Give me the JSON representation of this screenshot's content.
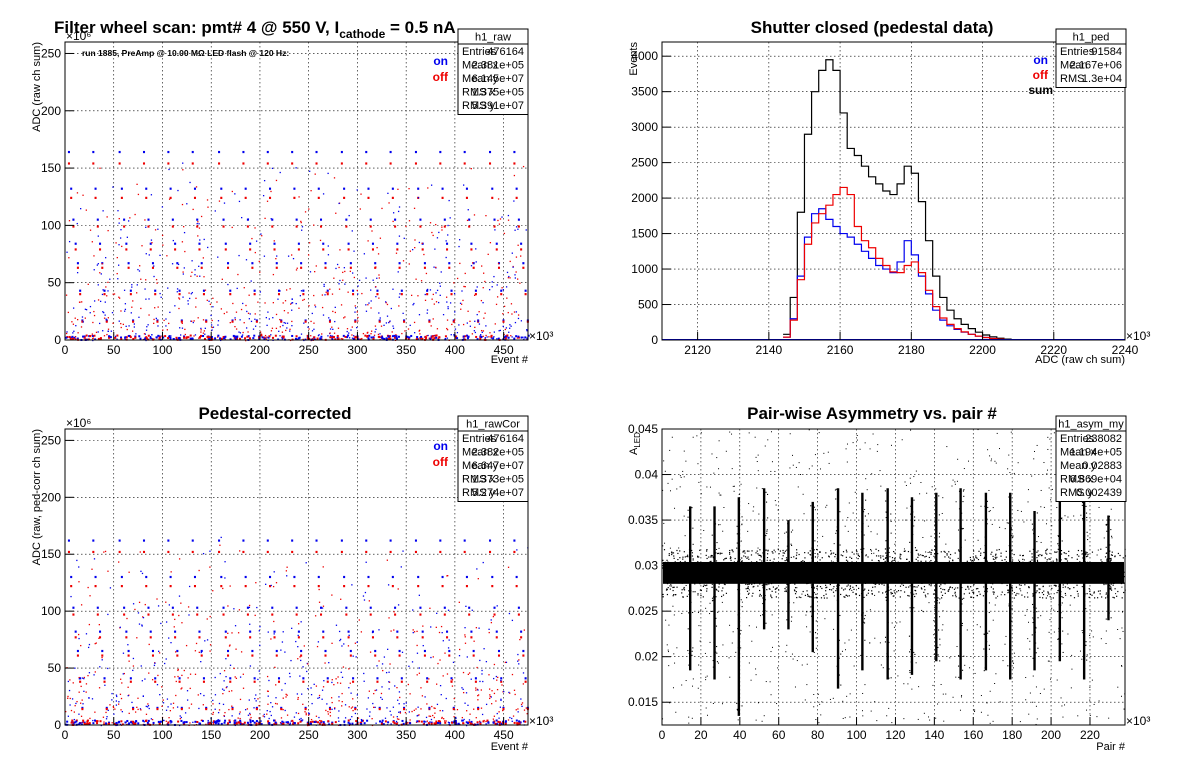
{
  "chart_data": [
    {
      "type": "scatter",
      "title_parts": [
        "Filter wheel scan: pmt#   4 @   550 V, I",
        "cathode",
        " = 0.5 nA"
      ],
      "annotation": "run 1885, PreAmp @ 10.00 MΩ LED flash @  120 Hz:",
      "xlabel": "Event #",
      "ylabel": "ADC (raw ch sum)",
      "xlim": [
        0,
        475000
      ],
      "ylim": [
        0,
        260000000
      ],
      "x_ticks": [
        0,
        50,
        100,
        150,
        200,
        250,
        300,
        350,
        400,
        450
      ],
      "y_ticks": [
        0,
        50,
        100,
        150,
        200,
        250
      ],
      "x_exp": "×10³",
      "y_exp": "×10⁶",
      "legend": [
        {
          "label": "on",
          "color": "#0000ee"
        },
        {
          "label": "off",
          "color": "#ee0000"
        }
      ],
      "stats": {
        "name": "h1_raw",
        "rows": [
          [
            "Entries",
            "476164"
          ],
          [
            "Mean x",
            "2.381e+05"
          ],
          [
            "Mean y",
            "6.145e+07"
          ],
          [
            "RMS x",
            "1.375e+05"
          ],
          [
            "RMS y",
            "5.391e+07"
          ]
        ]
      },
      "cycle_events": [
        0,
        25000,
        52000,
        77000,
        102000,
        127000,
        154000,
        179000,
        204000,
        229000,
        254000,
        280000,
        305000,
        330000,
        356000,
        381000,
        406000,
        432000,
        457000
      ],
      "level_stack_on": [
        164,
        132,
        105,
        84,
        67,
        43,
        17,
        3
      ],
      "level_stack_off": [
        154,
        124,
        99,
        79,
        63,
        40,
        16,
        2
      ],
      "grid": true
    },
    {
      "type": "step",
      "title": "Shutter closed (pedestal data)",
      "xlabel": "ADC (raw ch sum)",
      "ylabel": "Events",
      "xlim": [
        2110,
        2240
      ],
      "ylim": [
        0,
        4200
      ],
      "x_ticks": [
        2120,
        2140,
        2160,
        2180,
        2200,
        2220,
        2240
      ],
      "y_ticks": [
        0,
        500,
        1000,
        1500,
        2000,
        2500,
        3000,
        3500,
        4000
      ],
      "x_exp": "×10³",
      "legend": [
        {
          "label": "on",
          "color": "#0000ee"
        },
        {
          "label": "off",
          "color": "#ee0000"
        },
        {
          "label": "sum",
          "color": "#000000"
        }
      ],
      "stats": {
        "name": "h1_ped",
        "rows": [
          [
            "Entries",
            "91584"
          ],
          [
            "Mean",
            "2.167e+06"
          ],
          [
            "RMS",
            "1.3e+04"
          ]
        ]
      },
      "x": [
        2145,
        2147,
        2149,
        2151,
        2153,
        2155,
        2157,
        2159,
        2161,
        2163,
        2165,
        2167,
        2169,
        2171,
        2173,
        2175,
        2177,
        2179,
        2181,
        2183,
        2185,
        2187,
        2189,
        2191,
        2193,
        2195,
        2197,
        2199,
        2201,
        2203,
        2205,
        2207,
        2209
      ],
      "series": [
        {
          "name": "sum",
          "color": "#000000",
          "values": [
            80,
            600,
            1800,
            2900,
            3500,
            3800,
            3950,
            3800,
            3200,
            2700,
            2600,
            2450,
            2300,
            2200,
            2100,
            2050,
            2200,
            2450,
            2350,
            1950,
            1400,
            900,
            600,
            420,
            300,
            220,
            160,
            110,
            70,
            45,
            25,
            12,
            5
          ]
        },
        {
          "name": "on",
          "color": "#0000ee",
          "values": [
            40,
            300,
            900,
            1450,
            1780,
            1850,
            1700,
            1600,
            1500,
            1450,
            1350,
            1250,
            1150,
            1050,
            1000,
            950,
            1100,
            1400,
            1200,
            900,
            650,
            420,
            280,
            200,
            150,
            110,
            80,
            55,
            35,
            22,
            12,
            6,
            2
          ]
        },
        {
          "name": "off",
          "color": "#ee0000",
          "values": [
            40,
            280,
            850,
            1350,
            1650,
            1780,
            1900,
            2050,
            2150,
            2050,
            1600,
            1400,
            1300,
            1150,
            1050,
            960,
            950,
            1050,
            1100,
            950,
            700,
            470,
            310,
            220,
            160,
            115,
            80,
            55,
            35,
            22,
            12,
            6,
            2
          ]
        }
      ],
      "grid": true
    },
    {
      "type": "scatter",
      "title": "Pedestal-corrected",
      "xlabel": "Event #",
      "ylabel": "ADC (raw, ped-corr ch sum)",
      "xlim": [
        0,
        475000
      ],
      "ylim": [
        0,
        260000000
      ],
      "x_ticks": [
        0,
        50,
        100,
        150,
        200,
        250,
        300,
        350,
        400,
        450
      ],
      "y_ticks": [
        0,
        50,
        100,
        150,
        200,
        250
      ],
      "x_exp": "×10³",
      "y_exp": "×10⁶",
      "legend": [
        {
          "label": "on",
          "color": "#0000ee"
        },
        {
          "label": "off",
          "color": "#ee0000"
        }
      ],
      "stats": {
        "name": "h1_rawCor",
        "rows": [
          [
            "Entries",
            "476164"
          ],
          [
            "Mean x",
            "2.382e+05"
          ],
          [
            "Mean y",
            "6.647e+07"
          ],
          [
            "RMS x",
            "1.373e+05"
          ],
          [
            "RMS y",
            "5.274e+07"
          ]
        ]
      },
      "cycle_events": [
        0,
        25000,
        52000,
        77000,
        102000,
        127000,
        154000,
        179000,
        204000,
        229000,
        254000,
        280000,
        305000,
        330000,
        356000,
        381000,
        406000,
        432000,
        457000
      ],
      "level_stack_on": [
        162,
        130,
        103,
        82,
        65,
        41,
        15,
        2
      ],
      "level_stack_off": [
        152,
        122,
        97,
        77,
        61,
        38,
        14,
        1
      ],
      "grid": true
    },
    {
      "type": "scatter",
      "title": "Pair-wise Asymmetry vs. pair #",
      "xlabel": "Pair #",
      "ylabel_main": "A",
      "ylabel_sub": "LED",
      "xlim": [
        0,
        238000
      ],
      "ylim": [
        0.0125,
        0.045
      ],
      "x_ticks": [
        0,
        20,
        40,
        60,
        80,
        100,
        120,
        140,
        160,
        180,
        200,
        220
      ],
      "y_ticks": [
        0.015,
        0.02,
        0.025,
        0.03,
        0.035,
        0.04,
        0.045
      ],
      "x_exp": "×10³",
      "stats": {
        "name": "h1_asym_my",
        "rows": [
          [
            "Entries",
            "238082"
          ],
          [
            "Mean x",
            "1.194e+05"
          ],
          [
            "Mean y",
            "0.02883"
          ],
          [
            "RMS x",
            "6.869e+04"
          ],
          [
            "RMS y",
            "0.002439"
          ]
        ]
      },
      "band_center": 0.0292,
      "band_halfwidth": 0.0012,
      "spike_pairs": [
        14500,
        27000,
        39500,
        52500,
        65000,
        77500,
        90500,
        103000,
        116000,
        128500,
        141000,
        153500,
        166500,
        179000,
        191500,
        204500,
        217000,
        229500
      ],
      "spike_top": [
        0.0365,
        0.0365,
        0.0375,
        0.0385,
        0.035,
        0.037,
        0.0385,
        0.038,
        0.0385,
        0.0375,
        0.038,
        0.0385,
        0.038,
        0.038,
        0.036,
        0.0385,
        0.0375,
        0.0355
      ],
      "spike_bottom": [
        0.0185,
        0.0175,
        0.0135,
        0.023,
        0.023,
        0.0205,
        0.0165,
        0.0185,
        0.0175,
        0.018,
        0.0195,
        0.0175,
        0.0185,
        0.0175,
        0.0185,
        0.0195,
        0.0175,
        0.024
      ],
      "grid": true
    }
  ]
}
